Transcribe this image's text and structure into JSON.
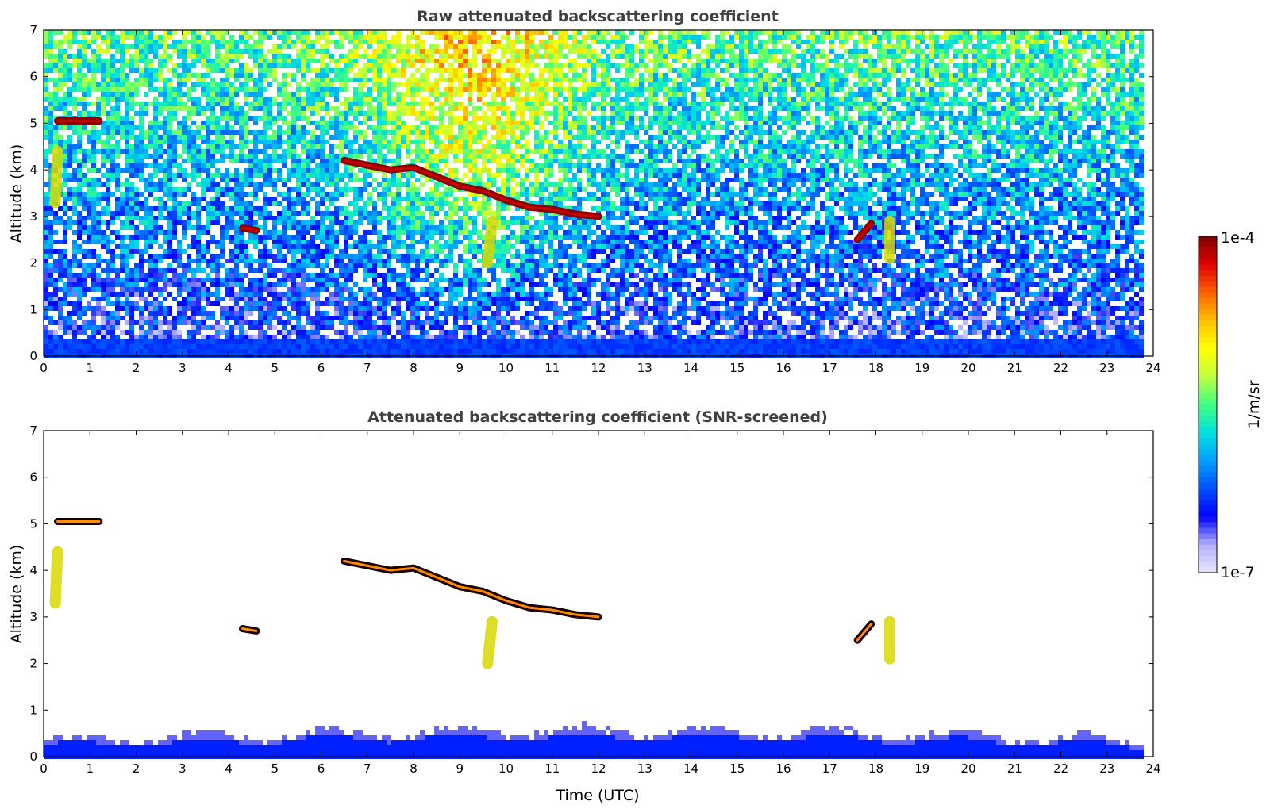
{
  "chart_data": [
    {
      "type": "heatmap",
      "title": "Raw attenuated backscattering coefficient",
      "xlabel": "",
      "ylabel": "Altitude (km)",
      "xlim": [
        0,
        24
      ],
      "ylim": [
        0,
        7
      ],
      "xticks": [
        "0",
        "1",
        "2",
        "3",
        "4",
        "5",
        "6",
        "7",
        "8",
        "9",
        "10",
        "11",
        "12",
        "13",
        "14",
        "15",
        "16",
        "17",
        "18",
        "19",
        "20",
        "21",
        "22",
        "23",
        "24"
      ],
      "yticks": [
        "0",
        "1",
        "2",
        "3",
        "4",
        "5",
        "6",
        "7"
      ],
      "features": [
        {
          "name": "cloud layer",
          "points": [
            [
              6.5,
              4.2
            ],
            [
              7.0,
              4.1
            ],
            [
              7.5,
              4.0
            ],
            [
              8.0,
              4.05
            ],
            [
              8.5,
              3.85
            ],
            [
              9.0,
              3.65
            ],
            [
              9.5,
              3.55
            ],
            [
              10.0,
              3.35
            ],
            [
              10.5,
              3.2
            ],
            [
              11.0,
              3.15
            ],
            [
              11.5,
              3.05
            ],
            [
              12.0,
              3.0
            ]
          ],
          "level": "high"
        },
        {
          "name": "cloud patch",
          "points": [
            [
              0.3,
              5.05
            ],
            [
              0.8,
              5.05
            ],
            [
              1.2,
              5.05
            ]
          ],
          "level": "high"
        },
        {
          "name": "cloud patch",
          "points": [
            [
              4.3,
              2.75
            ],
            [
              4.6,
              2.7
            ]
          ],
          "level": "high"
        },
        {
          "name": "cloud patch",
          "points": [
            [
              17.6,
              2.5
            ],
            [
              17.9,
              2.85
            ]
          ],
          "level": "high"
        },
        {
          "name": "plume",
          "points": [
            [
              0.25,
              3.3
            ],
            [
              0.3,
              4.4
            ]
          ],
          "level": "medium"
        },
        {
          "name": "plume",
          "points": [
            [
              9.6,
              2.0
            ],
            [
              9.7,
              2.9
            ]
          ],
          "level": "medium"
        },
        {
          "name": "plume",
          "points": [
            [
              18.3,
              2.1
            ],
            [
              18.3,
              2.9
            ]
          ],
          "level": "medium"
        }
      ]
    },
    {
      "type": "heatmap",
      "title": "Attenuated backscattering coefficient (SNR-screened)",
      "xlabel": "Time (UTC)",
      "ylabel": "Altitude (km)",
      "xlim": [
        0,
        24
      ],
      "ylim": [
        0,
        7
      ],
      "xticks": [
        "0",
        "1",
        "2",
        "3",
        "4",
        "5",
        "6",
        "7",
        "8",
        "9",
        "10",
        "11",
        "12",
        "13",
        "14",
        "15",
        "16",
        "17",
        "18",
        "19",
        "20",
        "21",
        "22",
        "23",
        "24"
      ],
      "yticks": [
        "0",
        "1",
        "2",
        "3",
        "4",
        "5",
        "6",
        "7"
      ]
    }
  ],
  "colorbar": {
    "label": "1/m/sr",
    "max_label": "1e-4",
    "min_label": "1e-7",
    "colors": [
      "#e6e6ff",
      "#b0b0ff",
      "#0000ff",
      "#0050ff",
      "#00a0ff",
      "#00e0e0",
      "#40ff80",
      "#c0ff40",
      "#ffff00",
      "#ffc000",
      "#ff6000",
      "#e00000",
      "#800000"
    ]
  }
}
